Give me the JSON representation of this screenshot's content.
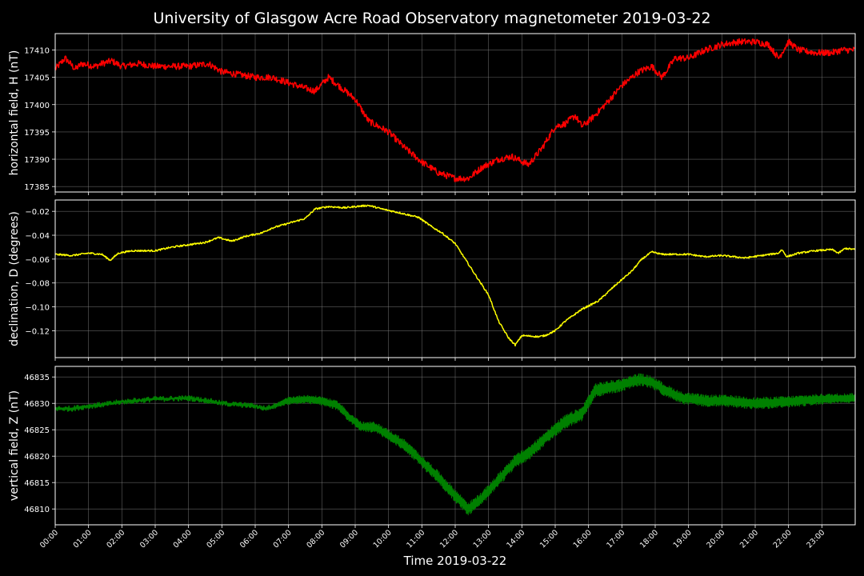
{
  "chart_data": {
    "type": "line",
    "title": "University of Glasgow Acre Road Observatory magnetometer 2019-03-22",
    "xlabel": "Time 2019-03-22",
    "x_ticks": [
      "00:00",
      "01:00",
      "02:00",
      "03:00",
      "04:00",
      "05:00",
      "06:00",
      "07:00",
      "08:00",
      "09:00",
      "10:00",
      "11:00",
      "12:00",
      "13:00",
      "14:00",
      "15:00",
      "16:00",
      "17:00",
      "18:00",
      "19:00",
      "20:00",
      "21:00",
      "22:00",
      "23:00"
    ],
    "x_unit": "hour",
    "x_range": [
      0,
      24
    ],
    "grid": true,
    "background": "#000000",
    "grid_color": "#808080",
    "panels": [
      {
        "ylabel": "horizontal field, H (nT)",
        "color": "#ff0000",
        "ylim": [
          17384,
          17413
        ],
        "y_ticks": [
          17385,
          17390,
          17395,
          17400,
          17405,
          17410
        ],
        "noise": 0.6,
        "points": [
          [
            0.0,
            17406.5
          ],
          [
            0.3,
            17408.5
          ],
          [
            0.6,
            17406.5
          ],
          [
            0.8,
            17407.5
          ],
          [
            1.2,
            17407.0
          ],
          [
            1.4,
            17407.5
          ],
          [
            1.7,
            17408.0
          ],
          [
            2.0,
            17407.0
          ],
          [
            2.5,
            17407.5
          ],
          [
            3.0,
            17407.0
          ],
          [
            4.0,
            17407.0
          ],
          [
            4.6,
            17407.5
          ],
          [
            5.0,
            17406.0
          ],
          [
            6.0,
            17405.0
          ],
          [
            6.5,
            17405.0
          ],
          [
            7.0,
            17404.0
          ],
          [
            7.5,
            17403.0
          ],
          [
            7.8,
            17402.5
          ],
          [
            8.2,
            17405.0
          ],
          [
            8.6,
            17403.0
          ],
          [
            9.0,
            17401.0
          ],
          [
            9.4,
            17397.0
          ],
          [
            10.0,
            17395.0
          ],
          [
            10.5,
            17392.0
          ],
          [
            11.0,
            17389.5
          ],
          [
            11.5,
            17387.5
          ],
          [
            12.0,
            17386.5
          ],
          [
            12.4,
            17386.5
          ],
          [
            12.8,
            17388.5
          ],
          [
            13.3,
            17390.0
          ],
          [
            13.7,
            17390.5
          ],
          [
            14.2,
            17389.0
          ],
          [
            14.6,
            17392.0
          ],
          [
            15.0,
            17396.0
          ],
          [
            15.3,
            17396.5
          ],
          [
            15.6,
            17398.0
          ],
          [
            15.8,
            17396.0
          ],
          [
            16.1,
            17397.5
          ],
          [
            16.5,
            17400.0
          ],
          [
            17.0,
            17403.5
          ],
          [
            17.5,
            17406.0
          ],
          [
            17.9,
            17407.0
          ],
          [
            18.2,
            17405.0
          ],
          [
            18.6,
            17408.5
          ],
          [
            19.0,
            17408.5
          ],
          [
            19.5,
            17410.0
          ],
          [
            20.0,
            17411.0
          ],
          [
            20.5,
            17411.5
          ],
          [
            21.0,
            17411.5
          ],
          [
            21.4,
            17411.0
          ],
          [
            21.7,
            17408.5
          ],
          [
            22.0,
            17411.5
          ],
          [
            22.3,
            17410.0
          ],
          [
            22.8,
            17409.5
          ],
          [
            23.3,
            17409.5
          ],
          [
            23.6,
            17410.0
          ],
          [
            24.0,
            17410.0
          ]
        ]
      },
      {
        "ylabel": "declination, D (degrees)",
        "color": "#ffff00",
        "ylim": [
          -0.1425,
          -0.0105
        ],
        "y_ticks": [
          -0.02,
          -0.04,
          -0.06,
          -0.08,
          -0.1,
          -0.12
        ],
        "y_tick_labels": [
          "−0.02",
          "−0.04",
          "−0.06",
          "−0.08",
          "−0.10",
          "−0.12"
        ],
        "noise": 0.0007,
        "points": [
          [
            0.0,
            -0.056
          ],
          [
            0.5,
            -0.057
          ],
          [
            1.0,
            -0.055
          ],
          [
            1.4,
            -0.056
          ],
          [
            1.65,
            -0.061
          ],
          [
            1.9,
            -0.055
          ],
          [
            2.3,
            -0.053
          ],
          [
            3.0,
            -0.053
          ],
          [
            3.5,
            -0.05
          ],
          [
            4.0,
            -0.048
          ],
          [
            4.5,
            -0.046
          ],
          [
            4.9,
            -0.042
          ],
          [
            5.3,
            -0.045
          ],
          [
            5.7,
            -0.041
          ],
          [
            6.2,
            -0.038
          ],
          [
            6.5,
            -0.034
          ],
          [
            7.0,
            -0.03
          ],
          [
            7.5,
            -0.026
          ],
          [
            7.8,
            -0.018
          ],
          [
            8.2,
            -0.016
          ],
          [
            8.7,
            -0.017
          ],
          [
            9.0,
            -0.016
          ],
          [
            9.4,
            -0.015
          ],
          [
            9.8,
            -0.018
          ],
          [
            10.3,
            -0.021
          ],
          [
            10.9,
            -0.025
          ],
          [
            11.3,
            -0.033
          ],
          [
            11.6,
            -0.038
          ],
          [
            12.0,
            -0.047
          ],
          [
            12.3,
            -0.06
          ],
          [
            12.6,
            -0.073
          ],
          [
            13.0,
            -0.09
          ],
          [
            13.3,
            -0.112
          ],
          [
            13.6,
            -0.126
          ],
          [
            13.8,
            -0.132
          ],
          [
            14.0,
            -0.124
          ],
          [
            14.5,
            -0.125
          ],
          [
            14.7,
            -0.124
          ],
          [
            15.0,
            -0.12
          ],
          [
            15.3,
            -0.112
          ],
          [
            15.8,
            -0.102
          ],
          [
            16.3,
            -0.095
          ],
          [
            16.8,
            -0.082
          ],
          [
            17.3,
            -0.07
          ],
          [
            17.6,
            -0.06
          ],
          [
            17.9,
            -0.054
          ],
          [
            18.2,
            -0.056
          ],
          [
            19.0,
            -0.056
          ],
          [
            19.5,
            -0.058
          ],
          [
            20.0,
            -0.057
          ],
          [
            20.7,
            -0.059
          ],
          [
            21.2,
            -0.057
          ],
          [
            21.7,
            -0.055
          ],
          [
            21.8,
            -0.052
          ],
          [
            21.95,
            -0.058
          ],
          [
            22.3,
            -0.055
          ],
          [
            22.8,
            -0.053
          ],
          [
            23.3,
            -0.052
          ],
          [
            23.5,
            -0.055
          ],
          [
            23.7,
            -0.051
          ],
          [
            24.0,
            -0.052
          ]
        ]
      },
      {
        "ylabel": "vertical field, Z (nT)",
        "color": "#008000",
        "ylim": [
          46807,
          46837
        ],
        "y_ticks": [
          46810,
          46815,
          46820,
          46825,
          46830,
          46835
        ],
        "noise": 0.5,
        "band": [
          [
            0,
            0.15
          ],
          [
            6.5,
            0.2
          ],
          [
            7.0,
            0.8
          ],
          [
            9.0,
            1.0
          ],
          [
            12.0,
            1.3
          ],
          [
            16.0,
            1.4
          ],
          [
            17.0,
            1.3
          ],
          [
            19.0,
            1.2
          ],
          [
            21.0,
            1.2
          ],
          [
            24.0,
            1.0
          ]
        ],
        "points": [
          [
            0.0,
            46829.0
          ],
          [
            0.5,
            46829.0
          ],
          [
            1.0,
            46829.5
          ],
          [
            1.5,
            46829.8
          ],
          [
            2.0,
            46830.3
          ],
          [
            3.0,
            46830.8
          ],
          [
            4.0,
            46831.0
          ],
          [
            4.6,
            46830.5
          ],
          [
            5.0,
            46830.0
          ],
          [
            6.0,
            46829.5
          ],
          [
            6.3,
            46829.0
          ],
          [
            6.7,
            46829.8
          ],
          [
            7.0,
            46830.5
          ],
          [
            7.5,
            46830.8
          ],
          [
            8.0,
            46830.5
          ],
          [
            8.5,
            46829.5
          ],
          [
            8.8,
            46827.5
          ],
          [
            9.2,
            46825.5
          ],
          [
            9.6,
            46825.5
          ],
          [
            10.0,
            46824.0
          ],
          [
            10.5,
            46822.0
          ],
          [
            11.0,
            46819.0
          ],
          [
            11.5,
            46816.0
          ],
          [
            12.0,
            46812.5
          ],
          [
            12.4,
            46810.0
          ],
          [
            12.8,
            46812.0
          ],
          [
            13.3,
            46815.5
          ],
          [
            13.8,
            46819.0
          ],
          [
            14.3,
            46821.0
          ],
          [
            14.8,
            46824.0
          ],
          [
            15.3,
            46826.5
          ],
          [
            15.8,
            46828.0
          ],
          [
            16.2,
            46832.5
          ],
          [
            16.6,
            46833.0
          ],
          [
            17.0,
            46833.5
          ],
          [
            17.5,
            46834.5
          ],
          [
            17.9,
            46834.0
          ],
          [
            18.3,
            46832.5
          ],
          [
            18.8,
            46831.0
          ],
          [
            19.5,
            46830.5
          ],
          [
            20.0,
            46830.5
          ],
          [
            21.0,
            46830.0
          ],
          [
            22.0,
            46830.3
          ],
          [
            23.0,
            46830.8
          ],
          [
            24.0,
            46831.0
          ]
        ]
      }
    ]
  }
}
